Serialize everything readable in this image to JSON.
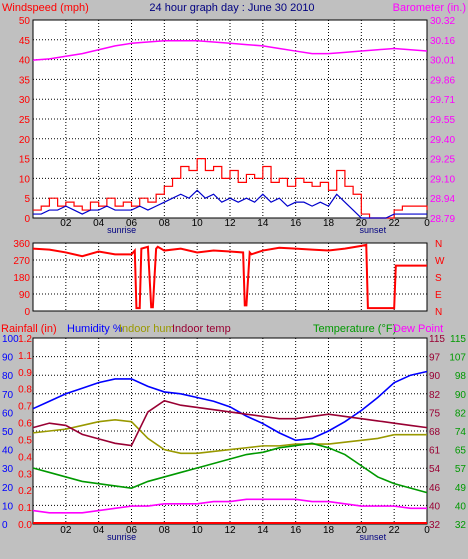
{
  "colors": {
    "background": "#c0c0c0",
    "plot_bg": "#ffffff",
    "grid": "#000000",
    "windspeed": "#ff0000",
    "wind_avg": "#0000cc",
    "barometer": "#ff00ff",
    "direction": "#ff0000",
    "rainfall": "#ff0000",
    "humidity": "#0000ff",
    "indoor_hum": "#999900",
    "indoor_temp": "#990033",
    "temperature": "#009900",
    "dew_point": "#ff00ff"
  },
  "header": {
    "left_label": "Windspeed (mph)",
    "title": "24 hour graph day : June 30 2010",
    "right_label": "Barometer (in.)"
  },
  "legend3": {
    "rainfall": "Rainfall (in)",
    "humidity": "Humidity %",
    "indoor_hum": "Indoor hum",
    "indoor_temp": "Indoor temp",
    "temperature": "Temperature (°F)",
    "dew_point": "Dew Point"
  },
  "x_ticks": [
    "02",
    "04",
    "06",
    "08",
    "10",
    "12",
    "14",
    "16",
    "18",
    "20",
    "22",
    "0"
  ],
  "markers": {
    "sunrise": "sunrise",
    "sunset": "sunset"
  },
  "chart_data": [
    {
      "type": "line",
      "panel": "wind_barometer",
      "x_range_hours": [
        0,
        24
      ],
      "y_left": {
        "label": "Windspeed (mph)",
        "ticks": [
          "0",
          "5",
          "10",
          "15",
          "20",
          "25",
          "30",
          "35",
          "40",
          "45",
          "50"
        ],
        "range": [
          0,
          50
        ]
      },
      "y_right": {
        "label": "Barometer (in.)",
        "ticks": [
          "28.79",
          "28.94",
          "29.10",
          "29.25",
          "29.40",
          "29.55",
          "29.71",
          "29.86",
          "30.01",
          "30.16",
          "30.32"
        ],
        "range": [
          28.79,
          30.32
        ]
      },
      "series": [
        {
          "name": "Windspeed (mph)",
          "axis": "left",
          "x": [
            0,
            0.5,
            1,
            1.5,
            2,
            2.5,
            3,
            3.5,
            4,
            4.5,
            5,
            5.5,
            6,
            6.5,
            7,
            7.5,
            8,
            8.5,
            9,
            9.5,
            10,
            10.5,
            11,
            11.5,
            12,
            12.5,
            13,
            13.5,
            14,
            14.5,
            15,
            15.5,
            16,
            16.5,
            17,
            17.5,
            18,
            18.5,
            19,
            19.5,
            20,
            20.5,
            21,
            21.5,
            22,
            22.5,
            23,
            23.5,
            24
          ],
          "y": [
            2,
            3,
            5,
            3,
            4,
            3,
            2,
            4,
            3,
            5,
            3,
            4,
            3,
            5,
            4,
            6,
            8,
            10,
            13,
            12,
            15,
            12,
            13,
            10,
            12,
            9,
            11,
            10,
            13,
            9,
            10,
            8,
            10,
            9,
            8,
            9,
            7,
            12,
            8,
            6,
            1,
            0,
            0,
            0,
            2,
            3,
            3,
            3,
            2
          ]
        },
        {
          "name": "",
          "axis": "left",
          "x": [
            0,
            0.5,
            1,
            1.5,
            2,
            2.5,
            3,
            3.5,
            4,
            4.5,
            5,
            5.5,
            6,
            6.5,
            7,
            7.5,
            8,
            8.5,
            9,
            9.5,
            10,
            10.5,
            11,
            11.5,
            12,
            12.5,
            13,
            13.5,
            14,
            14.5,
            15,
            15.5,
            16,
            16.5,
            17,
            17.5,
            18,
            18.5,
            19,
            19.5,
            20,
            20.5,
            21,
            21.5,
            22,
            22.5,
            23,
            23.5,
            24
          ],
          "y": [
            1,
            1,
            2,
            2,
            3,
            2,
            1,
            2,
            2,
            3,
            2,
            2,
            2,
            3,
            2,
            3,
            4,
            5,
            6,
            5,
            7,
            5,
            6,
            4,
            5,
            4,
            5,
            4,
            6,
            4,
            5,
            3,
            4,
            4,
            3,
            4,
            3,
            6,
            4,
            2,
            0,
            0,
            0,
            0,
            1,
            1,
            1,
            1,
            1
          ]
        },
        {
          "name": "Barometer (in.)",
          "axis": "right",
          "x": [
            0,
            1,
            2,
            3,
            4,
            5,
            6,
            7,
            8,
            9,
            10,
            11,
            12,
            13,
            14,
            15,
            16,
            17,
            18,
            19,
            20,
            21,
            22,
            23,
            24
          ],
          "y": [
            30.01,
            30.02,
            30.04,
            30.06,
            30.09,
            30.12,
            30.14,
            30.15,
            30.16,
            30.16,
            30.16,
            30.15,
            30.14,
            30.13,
            30.12,
            30.1,
            30.08,
            30.06,
            30.06,
            30.07,
            30.08,
            30.09,
            30.1,
            30.09,
            30.08
          ]
        }
      ]
    },
    {
      "type": "line",
      "panel": "wind_direction",
      "x_range_hours": [
        0,
        24
      ],
      "y_left": {
        "ticks": [
          "0",
          "90",
          "180",
          "270",
          "360"
        ],
        "range": [
          0,
          360
        ]
      },
      "y_right": {
        "ticks": [
          "N",
          "E",
          "S",
          "W",
          "N"
        ]
      },
      "series": [
        {
          "name": "",
          "axis": "left",
          "x": [
            0,
            1,
            2,
            3,
            4,
            5,
            6,
            6.2,
            6.3,
            6.5,
            6.6,
            7,
            7.2,
            7.3,
            7.5,
            7.6,
            8,
            9,
            10,
            11,
            12,
            12.8,
            12.9,
            13,
            13.2,
            13.3,
            14,
            15,
            16,
            17,
            18,
            19,
            20,
            20.3,
            20.4,
            22,
            22.1,
            24
          ],
          "y": [
            330,
            325,
            310,
            290,
            315,
            300,
            300,
            320,
            15,
            15,
            330,
            340,
            20,
            20,
            330,
            340,
            320,
            330,
            310,
            320,
            315,
            310,
            30,
            30,
            310,
            300,
            320,
            335,
            330,
            325,
            320,
            330,
            345,
            350,
            15,
            15,
            240,
            240
          ]
        }
      ]
    },
    {
      "type": "line",
      "panel": "temperature_humidity",
      "x_range_hours": [
        0,
        24
      ],
      "y_rain": {
        "label": "Rainfall (in)",
        "ticks": [
          "0.0",
          "0.1",
          "0.2",
          "0.3",
          "0.4",
          "0.5",
          "0.6",
          "0.7",
          "0.8",
          "0.9",
          "1.1",
          "1.2"
        ],
        "range": [
          0.0,
          1.2
        ]
      },
      "y_humidity": {
        "label": "Humidity %",
        "ticks": [
          "0",
          "10",
          "20",
          "30",
          "40",
          "50",
          "60",
          "70",
          "80",
          "90",
          "100"
        ],
        "range": [
          0,
          100
        ]
      },
      "y_temp_left": {
        "ticks": [
          "32",
          "40",
          "46",
          "54",
          "61",
          "68",
          "75",
          "82",
          "90",
          "97",
          "115"
        ]
      },
      "y_temp_right": {
        "label": "Temperature (°F)",
        "ticks": [
          "32",
          "40",
          "49",
          "57",
          "65",
          "74",
          "82",
          "90",
          "98",
          "107",
          "115"
        ],
        "range": [
          32,
          115
        ]
      },
      "series": [
        {
          "name": "Rainfall (in)",
          "axis": "rain",
          "x": [
            0,
            24
          ],
          "y": [
            0.0,
            0.0
          ]
        },
        {
          "name": "Humidity %",
          "axis": "humidity",
          "x": [
            0,
            1,
            2,
            3,
            4,
            5,
            6,
            7,
            8,
            9,
            10,
            11,
            12,
            13,
            14,
            15,
            16,
            17,
            18,
            19,
            20,
            21,
            22,
            23,
            24
          ],
          "y": [
            62,
            66,
            70,
            73,
            76,
            78,
            78,
            74,
            71,
            70,
            68,
            66,
            63,
            58,
            54,
            49,
            45,
            46,
            50,
            55,
            61,
            68,
            76,
            80,
            82
          ]
        },
        {
          "name": "Indoor hum",
          "axis": "humidity",
          "x": [
            0,
            1,
            2,
            3,
            4,
            5,
            6,
            7,
            8,
            9,
            10,
            11,
            12,
            13,
            14,
            15,
            16,
            17,
            18,
            19,
            20,
            21,
            22,
            23,
            24
          ],
          "y": [
            49,
            50,
            51,
            53,
            55,
            56,
            55,
            46,
            40,
            38,
            38,
            39,
            40,
            41,
            42,
            42,
            43,
            43,
            43,
            44,
            45,
            46,
            48,
            48,
            48
          ]
        },
        {
          "name": "Indoor temp",
          "axis": "temp_right",
          "x": [
            0,
            1,
            2,
            3,
            4,
            5,
            6,
            7,
            8,
            9,
            10,
            11,
            12,
            13,
            14,
            15,
            16,
            17,
            18,
            19,
            20,
            21,
            22,
            23,
            24
          ],
          "y": [
            75,
            77,
            76,
            72,
            70,
            68,
            67,
            82,
            87,
            85,
            84,
            83,
            82,
            81,
            80,
            79,
            79,
            80,
            81,
            80,
            79,
            78,
            77,
            76,
            75
          ]
        },
        {
          "name": "Temperature (°F)",
          "axis": "temp_right",
          "x": [
            0,
            1,
            2,
            3,
            4,
            5,
            6,
            7,
            8,
            9,
            10,
            11,
            12,
            13,
            14,
            15,
            16,
            17,
            18,
            19,
            20,
            21,
            22,
            23,
            24
          ],
          "y": [
            57,
            55,
            53,
            51,
            50,
            49,
            48,
            51,
            53,
            55,
            57,
            59,
            61,
            63,
            64,
            66,
            67,
            68,
            66,
            63,
            58,
            53,
            50,
            48,
            46
          ]
        },
        {
          "name": "Dew Point",
          "axis": "temp_right",
          "x": [
            0,
            1,
            2,
            3,
            4,
            5,
            6,
            7,
            8,
            9,
            10,
            11,
            12,
            13,
            14,
            15,
            16,
            17,
            18,
            19,
            20,
            21,
            22,
            23,
            24
          ],
          "y": [
            38,
            37,
            37,
            37,
            38,
            39,
            40,
            40,
            41,
            41,
            41,
            42,
            42,
            43,
            43,
            43,
            43,
            42,
            42,
            41,
            40,
            40,
            40,
            39,
            39
          ]
        }
      ]
    }
  ]
}
